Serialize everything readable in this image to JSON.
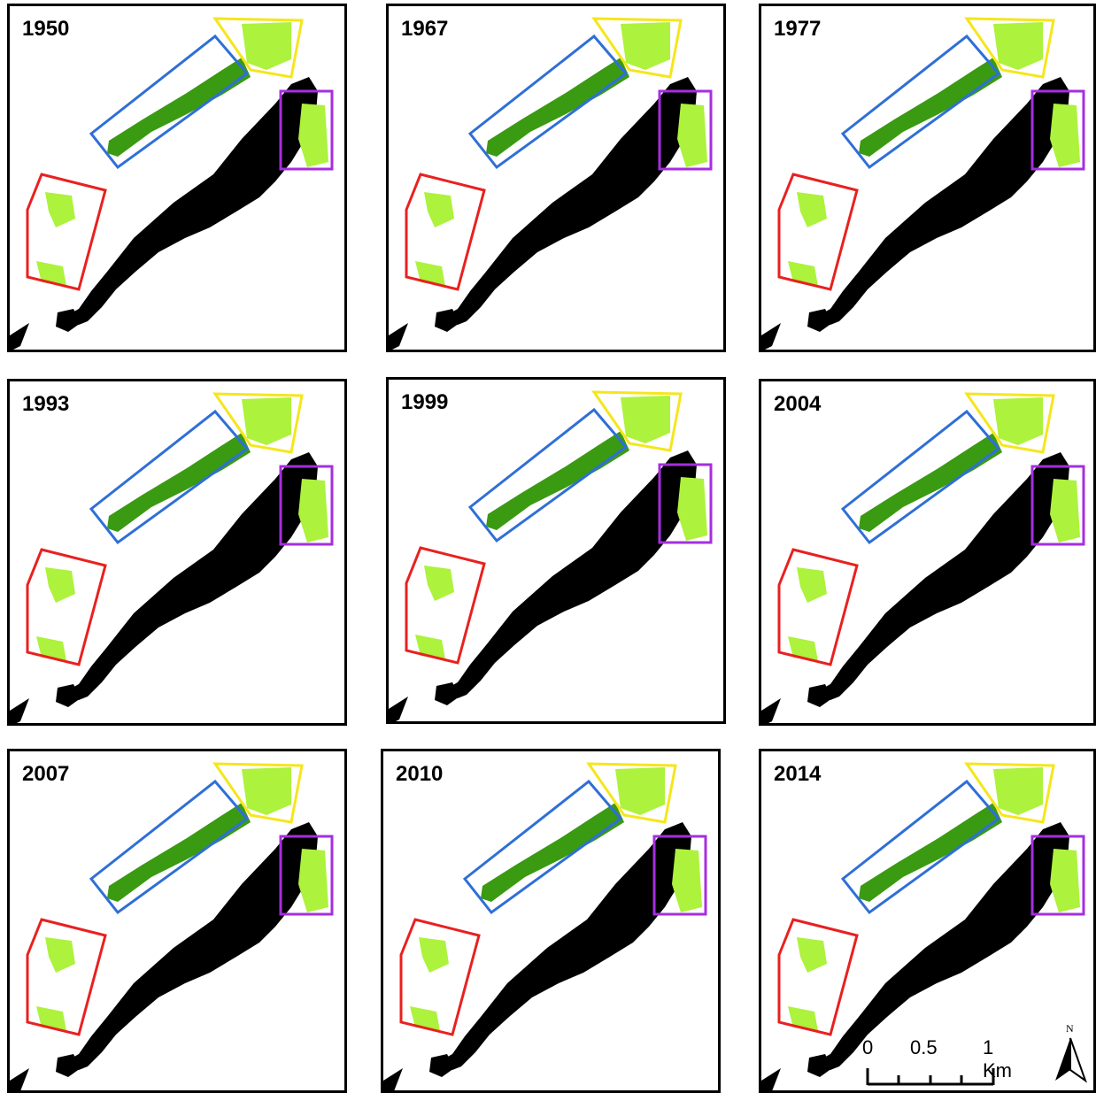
{
  "panels": [
    {
      "year": "1950"
    },
    {
      "year": "1967"
    },
    {
      "year": "1977"
    },
    {
      "year": "1993"
    },
    {
      "year": "1999"
    },
    {
      "year": "2004"
    },
    {
      "year": "2007"
    },
    {
      "year": "2010"
    },
    {
      "year": "2014"
    }
  ],
  "scale_bar": {
    "ticks": [
      "0",
      "0.5",
      "1 Km"
    ]
  },
  "north_arrow": {
    "label": "N"
  },
  "colors": {
    "lake": "#000000",
    "vegetation_dark": "#3a9a12",
    "vegetation_light": "#adf23c",
    "zone_blue": "#2f6fd6",
    "zone_yellow": "#f5e61c",
    "zone_purple": "#a62ee0",
    "zone_red": "#e8211f"
  }
}
